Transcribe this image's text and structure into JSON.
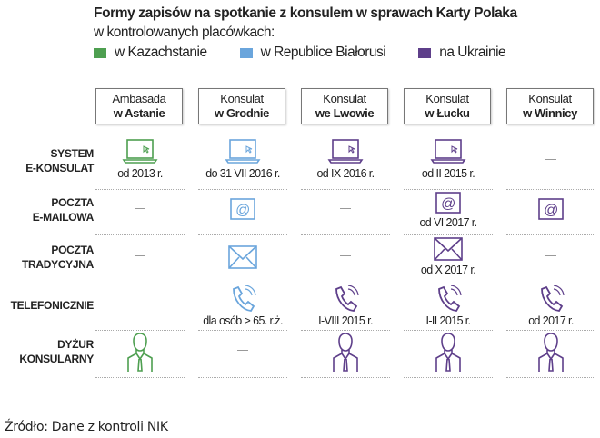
{
  "title": "Formy zapisów na spotkanie z konsulem w sprawach Karty Polaka",
  "subtitle": "w kontrolowanych placówkach:",
  "colors": {
    "kazakhstan": "#4e9f50",
    "belarus": "#6aa5dc",
    "ukraine": "#5e3f8a"
  },
  "legend": [
    {
      "label": "w Kazachstanie",
      "color": "#4e9f50"
    },
    {
      "label": "w Republice Białorusi",
      "color": "#6aa5dc"
    },
    {
      "label": "na Ukrainie",
      "color": "#5e3f8a"
    }
  ],
  "columns": [
    {
      "line1": "Ambasada",
      "line2": "w Astanie"
    },
    {
      "line1": "Konsulat",
      "line2": "w Grodnie"
    },
    {
      "line1": "Konsulat",
      "line2": "we Lwowie"
    },
    {
      "line1": "Konsulat",
      "line2": "w Łucku"
    },
    {
      "line1": "Konsulat",
      "line2": "w Winnicy"
    }
  ],
  "rows": [
    {
      "line1": "SYSTEM",
      "line2": "E-KONSULAT",
      "cells": [
        {
          "icon": "laptop-icon",
          "color": "#4e9f50",
          "text": "od 2013 r."
        },
        {
          "icon": "laptop-icon",
          "color": "#6aa5dc",
          "text": "do 31 VII 2016 r."
        },
        {
          "icon": "laptop-icon",
          "color": "#5e3f8a",
          "text": "od IX 2016 r."
        },
        {
          "icon": "laptop-icon",
          "color": "#5e3f8a",
          "text": "od II 2015 r."
        },
        {
          "icon": "none"
        }
      ]
    },
    {
      "line1": "POCZTA",
      "line2": "E-MAILOWA",
      "cells": [
        {
          "icon": "none"
        },
        {
          "icon": "at-icon",
          "color": "#6aa5dc",
          "text": ""
        },
        {
          "icon": "none"
        },
        {
          "icon": "at-icon",
          "color": "#5e3f8a",
          "text": "od VI 2017 r."
        },
        {
          "icon": "at-icon",
          "color": "#5e3f8a",
          "text": ""
        }
      ]
    },
    {
      "line1": "POCZTA",
      "line2": "TRADYCYJNA",
      "cells": [
        {
          "icon": "none"
        },
        {
          "icon": "envelope-icon",
          "color": "#6aa5dc",
          "text": ""
        },
        {
          "icon": "none"
        },
        {
          "icon": "envelope-icon",
          "color": "#5e3f8a",
          "text": "od X 2017 r."
        },
        {
          "icon": "none"
        }
      ]
    },
    {
      "line1": "TELEFONICZNIE",
      "line2": "",
      "cells": [
        {
          "icon": "none"
        },
        {
          "icon": "phone-icon",
          "color": "#6aa5dc",
          "text": "dla osób > 65. r.ż."
        },
        {
          "icon": "phone-icon",
          "color": "#5e3f8a",
          "text": "I-VIII 2015 r."
        },
        {
          "icon": "phone-icon",
          "color": "#5e3f8a",
          "text": "I-II 2015 r."
        },
        {
          "icon": "phone-icon",
          "color": "#5e3f8a",
          "text": "od 2017 r."
        }
      ]
    },
    {
      "line1": "DYŻUR",
      "line2": "KONSULARNY",
      "cells": [
        {
          "icon": "person-icon",
          "color": "#4e9f50",
          "text": ""
        },
        {
          "icon": "none"
        },
        {
          "icon": "person-icon",
          "color": "#5e3f8a",
          "text": ""
        },
        {
          "icon": "person-icon",
          "color": "#5e3f8a",
          "text": ""
        },
        {
          "icon": "person-icon",
          "color": "#5e3f8a",
          "text": ""
        }
      ]
    }
  ],
  "source": "Źródło: Dane z kontroli NIK"
}
